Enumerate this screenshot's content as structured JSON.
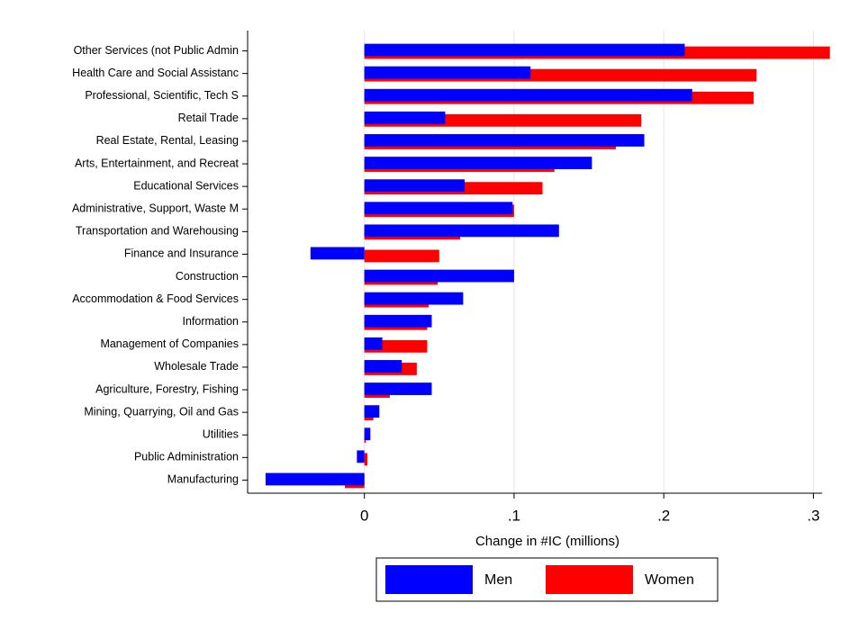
{
  "chart_data": {
    "type": "bar",
    "orientation": "horizontal",
    "categories": [
      "Other Services (not Public Admin",
      "Health Care and Social Assistanc",
      "Professional, Scientific, Tech S",
      "Retail Trade",
      "Real Estate, Rental, Leasing",
      "Arts, Entertainment, and Recreat",
      "Educational Services",
      "Administrative, Support, Waste M",
      "Transportation and Warehousing",
      "Finance and Insurance",
      "Construction",
      "Accommodation & Food Services",
      "Information",
      "Management of Companies",
      "Wholesale Trade",
      "Agriculture, Forestry, Fishing",
      "Mining, Quarrying, Oil and Gas",
      "Utilities",
      "Public Administration",
      "Manufacturing"
    ],
    "series": [
      {
        "name": "Women",
        "color": "#ff0000",
        "values": [
          0.311,
          0.262,
          0.26,
          0.185,
          0.168,
          0.127,
          0.119,
          0.1,
          0.064,
          0.05,
          0.049,
          0.043,
          0.042,
          0.042,
          0.035,
          0.017,
          0.006,
          0.001,
          0.002,
          -0.013
        ]
      },
      {
        "name": "Men",
        "color": "#0000ff",
        "values": [
          0.214,
          0.111,
          0.219,
          0.054,
          0.187,
          0.152,
          0.067,
          0.099,
          0.13,
          -0.036,
          0.1,
          0.066,
          0.045,
          0.012,
          0.025,
          0.045,
          0.01,
          0.004,
          -0.005,
          -0.066
        ]
      }
    ],
    "xlabel": "Change in #IC (millions)",
    "xlim": [
      -0.078,
      0.322
    ],
    "xticks": [
      0,
      {
        "value": 0.1,
        "label": ".1"
      },
      {
        "value": 0.2,
        "label": ".2"
      },
      {
        "value": 0.3,
        "label": ".3"
      }
    ],
    "grid": true,
    "legend": "bottom"
  }
}
